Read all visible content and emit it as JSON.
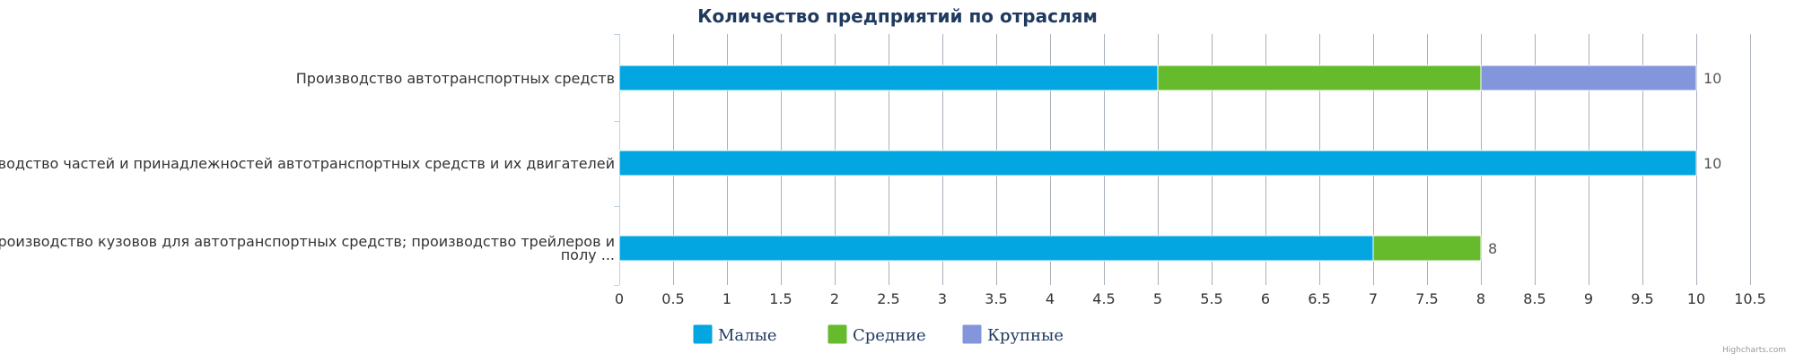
{
  "chart_data": {
    "type": "bar",
    "orientation": "horizontal",
    "stacked": true,
    "title": "Количество предприятий по отраслям",
    "categories": [
      "Производство автотранспортных средств",
      "Производство частей и принадлежностей автотранспортных средств и их двигателей",
      "Производство кузовов для автотранспортных средств; производство трейлеров и полу ..."
    ],
    "series": [
      {
        "name": "Малые",
        "color": "#03a6e0",
        "values": [
          5,
          10,
          7
        ]
      },
      {
        "name": "Средние",
        "color": "#66bb2c",
        "values": [
          3,
          0,
          1
        ]
      },
      {
        "name": "Крупные",
        "color": "#8396dc",
        "values": [
          2,
          0,
          0
        ]
      }
    ],
    "totals": [
      10,
      10,
      8
    ],
    "x_ticks": [
      "0",
      "0.5",
      "1",
      "1.5",
      "2",
      "2.5",
      "3",
      "3.5",
      "4",
      "4.5",
      "5",
      "5.5",
      "6",
      "6.5",
      "7",
      "7.5",
      "8",
      "8.5",
      "9",
      "9.5",
      "10",
      "10.5"
    ],
    "xlim": [
      0,
      10.5
    ],
    "grid": true,
    "legend_position": "bottom-left",
    "credits": "Highcharts.com"
  }
}
